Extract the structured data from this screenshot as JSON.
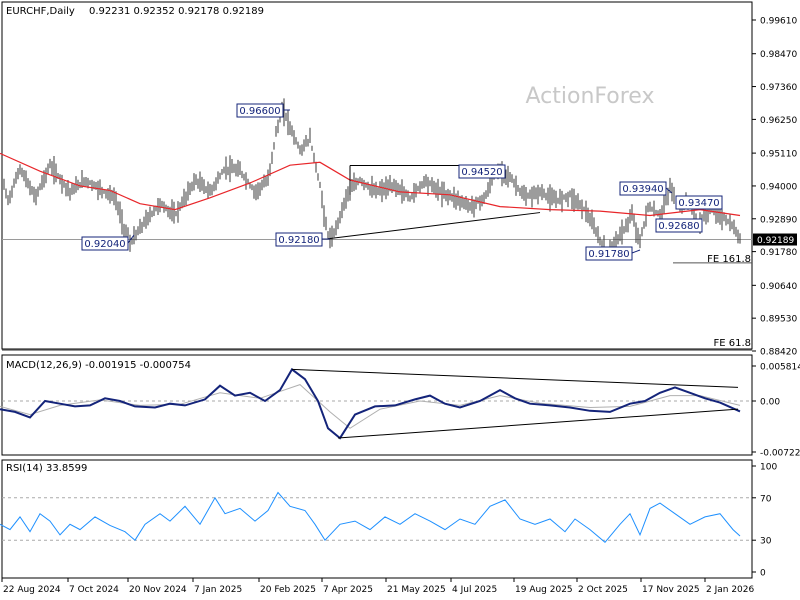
{
  "header": {
    "symbol": "EURCHF,Daily",
    "ohlc": "0.92231 0.92352 0.92178 0.92189"
  },
  "watermark": "ActionForex",
  "colors": {
    "price_bars": "#3a3a3a",
    "ma": "#e8262a",
    "macd": "#14247a",
    "macd_signal": "#b0b0b0",
    "rsi": "#1e90ff",
    "frame": "#000000",
    "grid_dash": "#aaaaaa"
  },
  "chart_data": [
    {
      "type": "ohlc",
      "title": "EURCHF,Daily",
      "series": [
        {
          "name": "EURCHF,Daily",
          "role": "price"
        },
        {
          "name": "",
          "role": "moving-average"
        }
      ],
      "x_ticks": [
        "22 Aug 2024",
        "7 Oct 2024",
        "20 Nov 2024",
        "7 Jan 2025",
        "20 Feb 2025",
        "7 Apr 2025",
        "21 May 2025",
        "4 Jul 2025",
        "19 Aug 2025",
        "2 Oct 2025",
        "17 Nov 2025",
        "2 Jan 2026"
      ],
      "y_ticks": [
        "0.99610",
        "0.98470",
        "0.97360",
        "0.96250",
        "0.95110",
        "0.94000",
        "0.92890",
        "0.91780",
        "0.90640",
        "0.89530",
        "0.88420"
      ],
      "ylim": [
        0.8842,
        0.9961
      ],
      "price_points": [
        [
          0,
          0.945
        ],
        [
          8,
          0.935
        ],
        [
          20,
          0.946
        ],
        [
          35,
          0.936
        ],
        [
          50,
          0.947
        ],
        [
          70,
          0.938
        ],
        [
          85,
          0.942
        ],
        [
          100,
          0.939
        ],
        [
          115,
          0.936
        ],
        [
          124,
          0.926
        ],
        [
          130,
          0.9204
        ],
        [
          145,
          0.928
        ],
        [
          160,
          0.934
        ],
        [
          175,
          0.93
        ],
        [
          195,
          0.942
        ],
        [
          210,
          0.938
        ],
        [
          225,
          0.946
        ],
        [
          240,
          0.945
        ],
        [
          255,
          0.938
        ],
        [
          268,
          0.942
        ],
        [
          276,
          0.958
        ],
        [
          283,
          0.966
        ],
        [
          290,
          0.96
        ],
        [
          300,
          0.952
        ],
        [
          310,
          0.956
        ],
        [
          320,
          0.94
        ],
        [
          327,
          0.924
        ],
        [
          332,
          0.9218
        ],
        [
          340,
          0.93
        ],
        [
          348,
          0.938
        ],
        [
          360,
          0.942
        ],
        [
          375,
          0.938
        ],
        [
          395,
          0.94
        ],
        [
          410,
          0.936
        ],
        [
          425,
          0.942
        ],
        [
          440,
          0.938
        ],
        [
          455,
          0.936
        ],
        [
          470,
          0.933
        ],
        [
          485,
          0.936
        ],
        [
          495,
          0.944
        ],
        [
          503,
          0.9452
        ],
        [
          512,
          0.942
        ],
        [
          525,
          0.936
        ],
        [
          540,
          0.938
        ],
        [
          555,
          0.935
        ],
        [
          570,
          0.937
        ],
        [
          585,
          0.932
        ],
        [
          598,
          0.923
        ],
        [
          606,
          0.9178
        ],
        [
          620,
          0.923
        ],
        [
          632,
          0.93
        ],
        [
          640,
          0.921
        ],
        [
          648,
          0.933
        ],
        [
          660,
          0.93
        ],
        [
          670,
          0.9394
        ],
        [
          680,
          0.933
        ],
        [
          690,
          0.9347
        ],
        [
          697,
          0.9268
        ],
        [
          710,
          0.932
        ],
        [
          722,
          0.93
        ],
        [
          733,
          0.926
        ],
        [
          740,
          0.9219
        ]
      ],
      "ma_points": [
        [
          0,
          0.951
        ],
        [
          40,
          0.945
        ],
        [
          80,
          0.94
        ],
        [
          110,
          0.9385
        ],
        [
          140,
          0.934
        ],
        [
          175,
          0.932
        ],
        [
          210,
          0.936
        ],
        [
          250,
          0.941
        ],
        [
          290,
          0.947
        ],
        [
          320,
          0.948
        ],
        [
          350,
          0.942
        ],
        [
          400,
          0.938
        ],
        [
          450,
          0.937
        ],
        [
          500,
          0.933
        ],
        [
          550,
          0.932
        ],
        [
          600,
          0.9315
        ],
        [
          650,
          0.93
        ],
        [
          700,
          0.932
        ],
        [
          740,
          0.93
        ]
      ],
      "current_price": "0.92189",
      "annotations": [
        {
          "label": "0.96600",
          "value": 0.966
        },
        {
          "label": "0.92040",
          "value": 0.9204
        },
        {
          "label": "0.92180",
          "value": 0.9218
        },
        {
          "label": "0.94520",
          "value": 0.9452
        },
        {
          "label": "0.93940",
          "value": 0.9394
        },
        {
          "label": "0.93470",
          "value": 0.9347
        },
        {
          "label": "0.92680",
          "value": 0.9268
        },
        {
          "label": "0.91780",
          "value": 0.9178
        },
        {
          "label": "FE 161.8",
          "value": 0.914
        },
        {
          "label": "FE 61.8",
          "value": 0.8855
        }
      ]
    },
    {
      "type": "line",
      "title": "MACD(12,26,9) -0.001915 -0.000754",
      "y_ticks": [
        "0.005814",
        "0.00",
        "-0.007222"
      ],
      "ylim": [
        -0.007222,
        0.005814
      ],
      "macd_points": [
        [
          0,
          -0.0015
        ],
        [
          15,
          -0.002
        ],
        [
          30,
          -0.003
        ],
        [
          45,
          0.0
        ],
        [
          60,
          -0.0005
        ],
        [
          75,
          -0.001
        ],
        [
          90,
          -0.0008
        ],
        [
          105,
          0.0005
        ],
        [
          120,
          0.0
        ],
        [
          135,
          -0.001
        ],
        [
          155,
          -0.0012
        ],
        [
          170,
          -0.0005
        ],
        [
          185,
          -0.0008
        ],
        [
          205,
          0.0003
        ],
        [
          220,
          0.0028
        ],
        [
          235,
          0.001
        ],
        [
          250,
          0.0015
        ],
        [
          265,
          0.0
        ],
        [
          280,
          0.002
        ],
        [
          292,
          0.0058
        ],
        [
          305,
          0.004
        ],
        [
          318,
          0.0
        ],
        [
          328,
          -0.005
        ],
        [
          340,
          -0.0068
        ],
        [
          355,
          -0.0025
        ],
        [
          375,
          -0.001
        ],
        [
          395,
          -0.0008
        ],
        [
          415,
          0.0003
        ],
        [
          430,
          0.001
        ],
        [
          445,
          -0.0005
        ],
        [
          460,
          -0.0012
        ],
        [
          480,
          0.0
        ],
        [
          500,
          0.002
        ],
        [
          515,
          0.0005
        ],
        [
          530,
          -0.0005
        ],
        [
          550,
          -0.0008
        ],
        [
          570,
          -0.0012
        ],
        [
          590,
          -0.0018
        ],
        [
          610,
          -0.002
        ],
        [
          630,
          -0.0005
        ],
        [
          645,
          0.0
        ],
        [
          660,
          0.0015
        ],
        [
          675,
          0.0025
        ],
        [
          690,
          0.0015
        ],
        [
          705,
          0.0005
        ],
        [
          720,
          -0.0003
        ],
        [
          740,
          -0.0019
        ]
      ],
      "signal_points": [
        [
          0,
          -0.001
        ],
        [
          30,
          -0.0025
        ],
        [
          60,
          -0.0008
        ],
        [
          100,
          0.0002
        ],
        [
          140,
          -0.0008
        ],
        [
          180,
          -0.0006
        ],
        [
          220,
          0.0015
        ],
        [
          260,
          0.0005
        ],
        [
          300,
          0.003
        ],
        [
          330,
          -0.002
        ],
        [
          350,
          -0.005
        ],
        [
          380,
          -0.0015
        ],
        [
          420,
          0.0
        ],
        [
          460,
          -0.0008
        ],
        [
          500,
          0.001
        ],
        [
          540,
          -0.0004
        ],
        [
          590,
          -0.0012
        ],
        [
          630,
          -0.001
        ],
        [
          670,
          0.001
        ],
        [
          700,
          0.001
        ],
        [
          740,
          -0.0008
        ]
      ]
    },
    {
      "type": "line",
      "title": "RSI(14) 33.8599",
      "y_ticks": [
        "100",
        "70",
        "30",
        "0"
      ],
      "ylim": [
        0,
        100
      ],
      "levels": [
        70,
        30
      ],
      "rsi_points": [
        [
          0,
          45
        ],
        [
          10,
          40
        ],
        [
          20,
          52
        ],
        [
          30,
          38
        ],
        [
          40,
          55
        ],
        [
          50,
          48
        ],
        [
          60,
          35
        ],
        [
          70,
          45
        ],
        [
          80,
          40
        ],
        [
          95,
          52
        ],
        [
          110,
          44
        ],
        [
          125,
          38
        ],
        [
          135,
          30
        ],
        [
          145,
          45
        ],
        [
          160,
          55
        ],
        [
          170,
          48
        ],
        [
          185,
          62
        ],
        [
          200,
          45
        ],
        [
          215,
          70
        ],
        [
          225,
          55
        ],
        [
          240,
          60
        ],
        [
          255,
          48
        ],
        [
          268,
          58
        ],
        [
          278,
          75
        ],
        [
          290,
          62
        ],
        [
          305,
          58
        ],
        [
          315,
          45
        ],
        [
          325,
          30
        ],
        [
          340,
          45
        ],
        [
          355,
          48
        ],
        [
          370,
          40
        ],
        [
          385,
          52
        ],
        [
          400,
          45
        ],
        [
          415,
          55
        ],
        [
          430,
          48
        ],
        [
          445,
          40
        ],
        [
          460,
          50
        ],
        [
          475,
          45
        ],
        [
          490,
          62
        ],
        [
          505,
          68
        ],
        [
          520,
          50
        ],
        [
          535,
          45
        ],
        [
          550,
          50
        ],
        [
          565,
          38
        ],
        [
          575,
          50
        ],
        [
          590,
          40
        ],
        [
          605,
          28
        ],
        [
          620,
          45
        ],
        [
          630,
          55
        ],
        [
          640,
          35
        ],
        [
          650,
          60
        ],
        [
          660,
          65
        ],
        [
          675,
          55
        ],
        [
          690,
          45
        ],
        [
          705,
          52
        ],
        [
          720,
          55
        ],
        [
          733,
          40
        ],
        [
          740,
          34
        ]
      ]
    }
  ]
}
